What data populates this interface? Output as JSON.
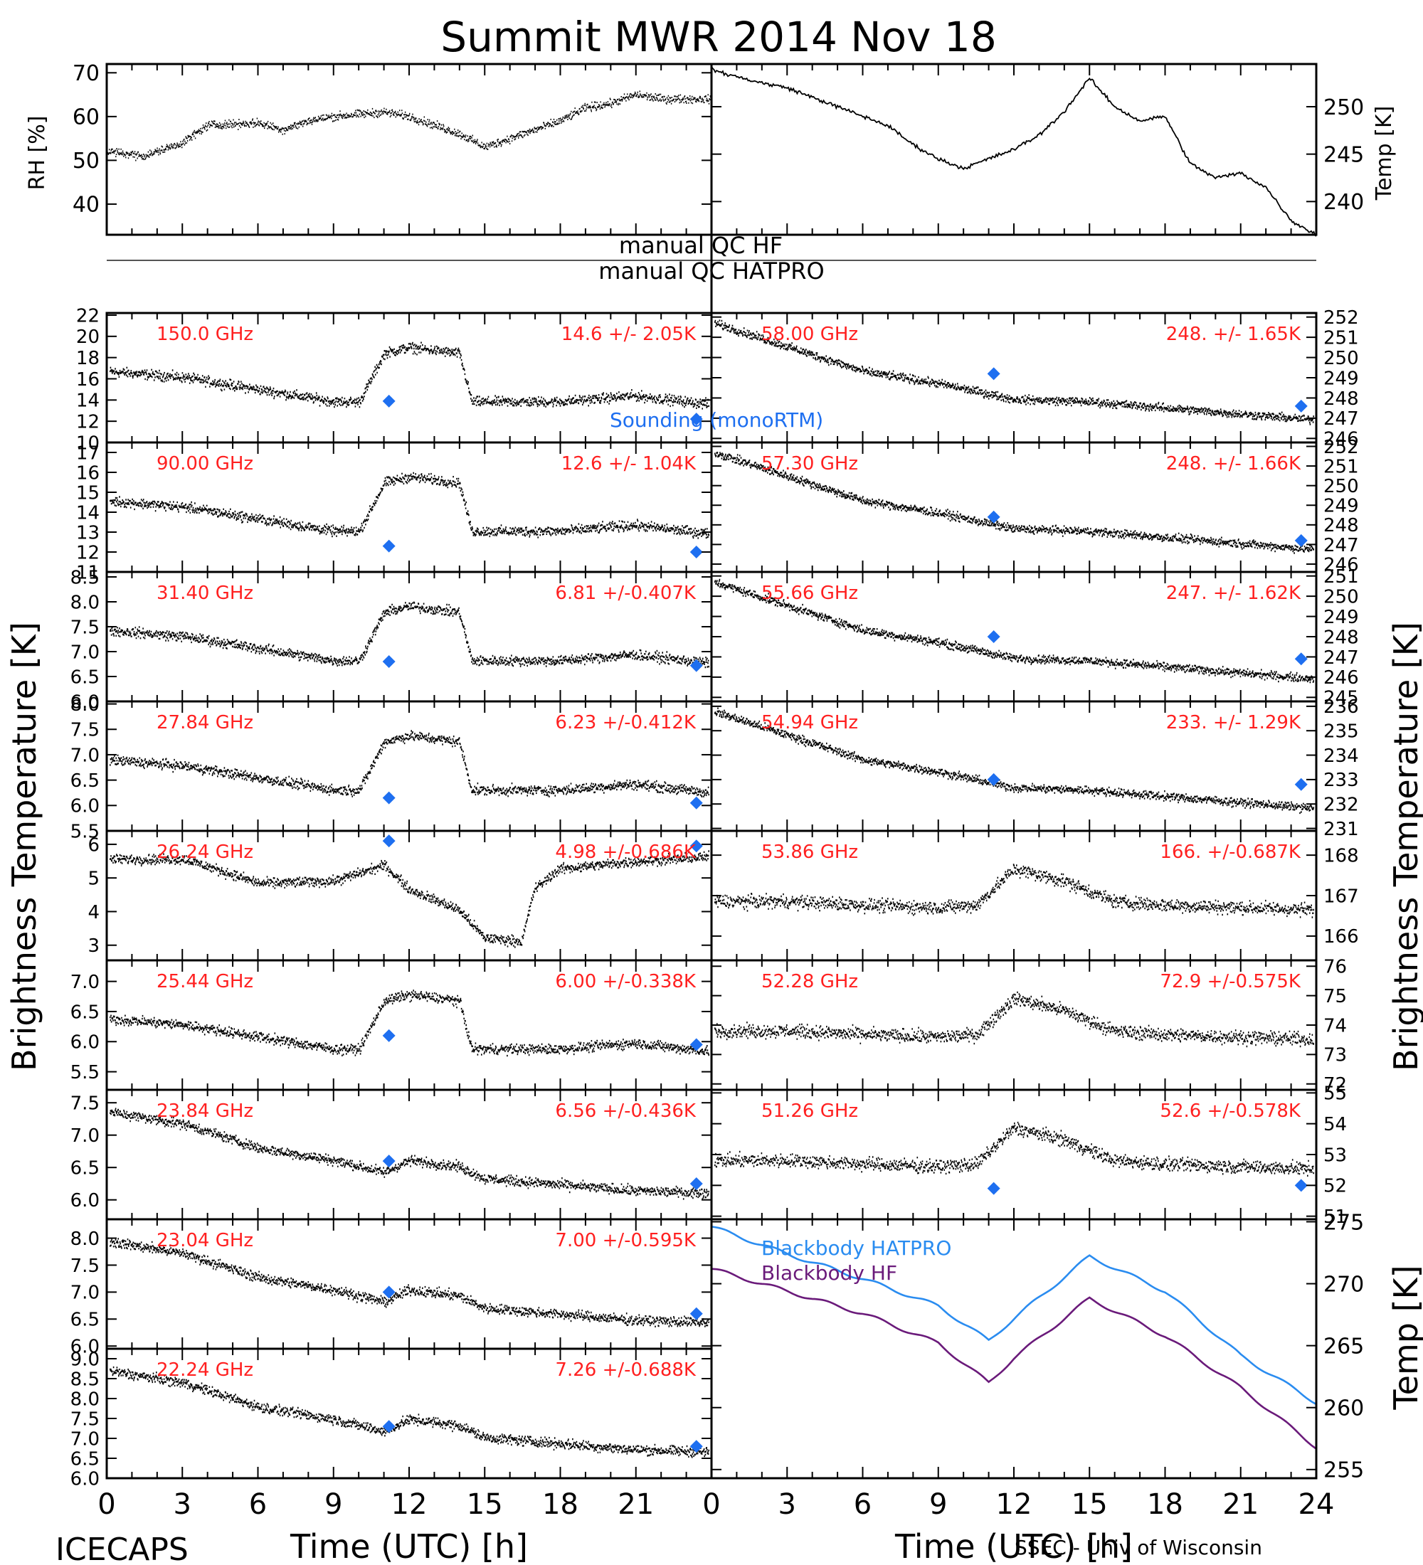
{
  "title": "Summit MWR 2014 Nov 18",
  "footer_left": "ICECAPS",
  "footer_right": "SSEC - Univ of Wisconsin",
  "colors": {
    "label": "#ff2020",
    "sounding": "#1e6ff0",
    "hatpro": "#2a8cf0",
    "hf": "#6a1a7a",
    "data": "#000000"
  },
  "x_axis": {
    "label": "Time (UTC) [h]",
    "ticks": [
      "0",
      "3",
      "6",
      "9",
      "12",
      "15",
      "18",
      "21",
      "24"
    ],
    "range": [
      0,
      24
    ]
  },
  "y_axes": {
    "left_main": "Brightness Temperature [K]",
    "right_main": "Brightness Temperature [K]",
    "right_bottom": "Temp [K]"
  },
  "qc": {
    "hf": "manual QC HF",
    "hatpro": "manual QC HATPRO"
  },
  "top_panels": {
    "left": {
      "ylabel": "RH [%]",
      "ticks": [
        "40",
        "50",
        "60",
        "70"
      ],
      "ylim": [
        33,
        72
      ]
    },
    "right": {
      "ylabel": "Temp [K]",
      "ticks": [
        "240",
        "245",
        "250"
      ],
      "ylim": [
        236.5,
        254.5
      ]
    }
  },
  "legend": {
    "sounding": "Sounding (monoRTM)",
    "bb_hatpro": "Blackbody HATPRO",
    "bb_hf": "Blackbody HF"
  },
  "chart_data": {
    "type": "scatter",
    "left": [
      {
        "freq": "150.0 GHz",
        "stat": "14.6 +/-  2.05K",
        "ticks": [
          "10",
          "12",
          "14",
          "16",
          "18",
          "20",
          "22"
        ],
        "ylim": [
          10,
          22.2
        ],
        "markers": [
          13.9,
          12.2
        ]
      },
      {
        "freq": "90.00 GHz",
        "stat": "12.6 +/-  1.04K",
        "ticks": [
          "11",
          "12",
          "13",
          "14",
          "15",
          "16",
          "17"
        ],
        "ylim": [
          11,
          17.5
        ],
        "markers": [
          12.3,
          12.0
        ]
      },
      {
        "freq": "31.40 GHz",
        "stat": "6.81 +/-0.407K",
        "ticks": [
          "6.0",
          "6.5",
          "7.0",
          "7.5",
          "8.0",
          "8.5"
        ],
        "ylim": [
          6.0,
          8.6
        ],
        "markers": [
          6.8,
          6.72
        ]
      },
      {
        "freq": "27.84 GHz",
        "stat": "6.23 +/-0.412K",
        "ticks": [
          "5.5",
          "6.0",
          "6.5",
          "7.0",
          "7.5",
          "8.0"
        ],
        "ylim": [
          5.5,
          8.05
        ],
        "markers": [
          6.15,
          6.05
        ]
      },
      {
        "freq": "26.24 GHz",
        "stat": "4.98 +/-0.686K",
        "ticks": [
          "3",
          "4",
          "5",
          "6"
        ],
        "ylim": [
          2.55,
          6.4
        ],
        "markers": [
          6.1,
          5.95
        ]
      },
      {
        "freq": "25.44 GHz",
        "stat": "6.00 +/-0.338K",
        "ticks": [
          "5.5",
          "6.0",
          "6.5",
          "7.0"
        ],
        "ylim": [
          5.2,
          7.35
        ],
        "markers": [
          6.1,
          5.95
        ]
      },
      {
        "freq": "23.84 GHz",
        "stat": "6.56 +/-0.436K",
        "ticks": [
          "6.0",
          "6.5",
          "7.0",
          "7.5"
        ],
        "ylim": [
          5.7,
          7.7
        ],
        "markers": [
          6.6,
          6.25
        ]
      },
      {
        "freq": "23.04 GHz",
        "stat": "7.00 +/-0.595K",
        "ticks": [
          "6.0",
          "6.5",
          "7.0",
          "7.5",
          "8.0"
        ],
        "ylim": [
          5.95,
          8.35
        ],
        "markers": [
          7.0,
          6.6
        ]
      },
      {
        "freq": "22.24 GHz",
        "stat": "7.26 +/-0.688K",
        "ticks": [
          "6.0",
          "6.5",
          "7.0",
          "7.5",
          "8.0",
          "8.5",
          "9.0"
        ],
        "ylim": [
          6.0,
          9.25
        ],
        "markers": [
          7.3,
          6.8
        ]
      }
    ],
    "right": [
      {
        "freq": "58.00 GHz",
        "stat": "248. +/- 1.65K",
        "ticks": [
          "246",
          "247",
          "248",
          "249",
          "250",
          "251",
          "252"
        ],
        "ylim": [
          245.8,
          252.2
        ],
        "markers": [
          249.2,
          247.6
        ]
      },
      {
        "freq": "57.30 GHz",
        "stat": "248. +/- 1.66K",
        "ticks": [
          "246",
          "247",
          "248",
          "249",
          "250",
          "251",
          "252"
        ],
        "ylim": [
          245.6,
          252.2
        ],
        "markers": [
          248.4,
          247.2
        ]
      },
      {
        "freq": "55.66 GHz",
        "stat": "247. +/- 1.62K",
        "ticks": [
          "245",
          "246",
          "247",
          "248",
          "249",
          "250",
          "251"
        ],
        "ylim": [
          244.8,
          251.2
        ],
        "markers": [
          248.0,
          246.9
        ]
      },
      {
        "freq": "54.94 GHz",
        "stat": "233. +/- 1.29K",
        "ticks": [
          "231",
          "232",
          "233",
          "234",
          "235",
          "236"
        ],
        "ylim": [
          230.9,
          236.2
        ],
        "markers": [
          233.0,
          232.8
        ]
      },
      {
        "freq": "53.86 GHz",
        "stat": "166. +/-0.687K",
        "ticks": [
          "166",
          "167",
          "168"
        ],
        "ylim": [
          165.4,
          168.6
        ],
        "markers": []
      },
      {
        "freq": "52.28 GHz",
        "stat": "72.9 +/-0.575K",
        "ticks": [
          "72",
          "73",
          "74",
          "75",
          "76"
        ],
        "ylim": [
          71.8,
          76.2
        ],
        "markers": []
      },
      {
        "freq": "51.26 GHz",
        "stat": "52.6 +/-0.578K",
        "ticks": [
          "51",
          "52",
          "53",
          "54",
          "55"
        ],
        "ylim": [
          50.9,
          55.1
        ],
        "markers": [
          51.9,
          52.0
        ]
      }
    ],
    "marker_times": [
      11.2,
      23.4
    ],
    "blackbody": {
      "ticks": [
        "255",
        "260",
        "265",
        "270",
        "275"
      ],
      "ylim": [
        254.3,
        275.2
      ],
      "hatpro": {
        "t": [
          0,
          3,
          6,
          9,
          11,
          12,
          15,
          18,
          21,
          24
        ],
        "v": [
          274.6,
          272.4,
          270.4,
          268.2,
          265.4,
          267.2,
          272.2,
          269.4,
          264.2,
          260.4
        ]
      },
      "hf": {
        "t": [
          0,
          3,
          6,
          9,
          11,
          12,
          15,
          18,
          21,
          24
        ],
        "v": [
          271.2,
          269.4,
          267.6,
          265.2,
          262.0,
          264.0,
          268.8,
          265.8,
          261.6,
          256.8
        ]
      }
    },
    "rh": {
      "t": [
        0,
        1.5,
        3,
        4,
        6,
        7,
        8,
        9,
        10,
        11,
        12,
        13,
        14,
        15,
        16,
        17,
        18,
        19,
        20,
        21,
        22,
        23,
        24
      ],
      "v": [
        52,
        51,
        54,
        58,
        58.5,
        57,
        59,
        60,
        60.5,
        61,
        60,
        58,
        56,
        53,
        55,
        57,
        59,
        62,
        63,
        65,
        64,
        64,
        64
      ]
    },
    "temp": {
      "t": [
        0,
        0.5,
        2,
        3,
        5,
        7,
        8,
        9,
        10,
        11,
        12,
        13,
        14,
        15,
        16,
        17,
        18,
        19,
        20,
        21,
        22,
        23,
        24
      ],
      "v": [
        254,
        253.5,
        252.5,
        252,
        250,
        248,
        246,
        244.5,
        243.5,
        244.5,
        245.5,
        247,
        249.5,
        253,
        250,
        248.5,
        249,
        244,
        242.5,
        243,
        241.5,
        238,
        236.5
      ]
    }
  }
}
